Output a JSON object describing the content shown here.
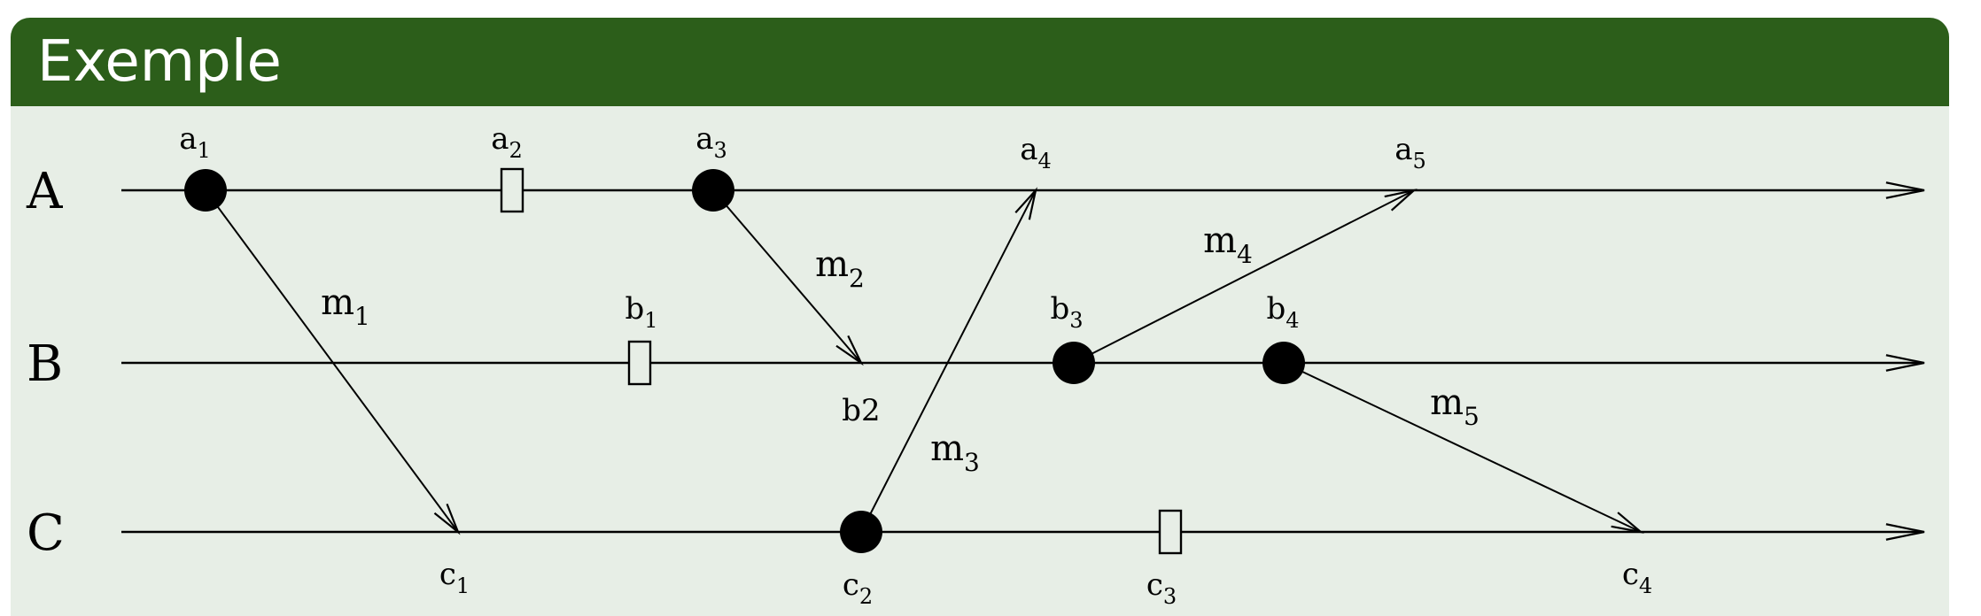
{
  "slide": {
    "title": "Exemple",
    "colors": {
      "title_bar": "#2c5e1a",
      "title_text": "#ffffff",
      "body": "#e7eee6",
      "ink": "#000000"
    }
  },
  "diagram": {
    "lanes": [
      {
        "id": "A",
        "label": "A"
      },
      {
        "id": "B",
        "label": "B"
      },
      {
        "id": "C",
        "label": "C"
      }
    ],
    "events": [
      {
        "id": "a1",
        "lane": "A",
        "order": 1,
        "kind": "send",
        "base": "a",
        "sub": "1",
        "label_side": "above"
      },
      {
        "id": "a2",
        "lane": "A",
        "order": 2,
        "kind": "internal",
        "base": "a",
        "sub": "2",
        "label_side": "above"
      },
      {
        "id": "a3",
        "lane": "A",
        "order": 3,
        "kind": "send",
        "base": "a",
        "sub": "3",
        "label_side": "above"
      },
      {
        "id": "a4",
        "lane": "A",
        "order": 4,
        "kind": "receive",
        "base": "a",
        "sub": "4",
        "label_side": "above"
      },
      {
        "id": "a5",
        "lane": "A",
        "order": 5,
        "kind": "receive",
        "base": "a",
        "sub": "5",
        "label_side": "above"
      },
      {
        "id": "b1",
        "lane": "B",
        "order": 1,
        "kind": "internal",
        "base": "b",
        "sub": "1",
        "label_side": "above"
      },
      {
        "id": "b2",
        "lane": "B",
        "order": 2,
        "kind": "receive",
        "base": "b2",
        "sub": "",
        "label_side": "below"
      },
      {
        "id": "b3",
        "lane": "B",
        "order": 3,
        "kind": "send",
        "base": "b",
        "sub": "3",
        "label_side": "above"
      },
      {
        "id": "b4",
        "lane": "B",
        "order": 4,
        "kind": "send",
        "base": "b",
        "sub": "4",
        "label_side": "above"
      },
      {
        "id": "c1",
        "lane": "C",
        "order": 1,
        "kind": "receive",
        "base": "c",
        "sub": "1",
        "label_side": "below"
      },
      {
        "id": "c2",
        "lane": "C",
        "order": 2,
        "kind": "send",
        "base": "c",
        "sub": "2",
        "label_side": "below"
      },
      {
        "id": "c3",
        "lane": "C",
        "order": 3,
        "kind": "internal",
        "base": "c",
        "sub": "3",
        "label_side": "below"
      },
      {
        "id": "c4",
        "lane": "C",
        "order": 4,
        "kind": "receive",
        "base": "c",
        "sub": "4",
        "label_side": "below"
      }
    ],
    "messages": [
      {
        "id": "m1",
        "base": "m",
        "sub": "1",
        "from": "a1",
        "to": "c1"
      },
      {
        "id": "m2",
        "base": "m",
        "sub": "2",
        "from": "a3",
        "to": "b2"
      },
      {
        "id": "m3",
        "base": "m",
        "sub": "3",
        "from": "c2",
        "to": "a4"
      },
      {
        "id": "m4",
        "base": "m",
        "sub": "4",
        "from": "b3",
        "to": "a5"
      },
      {
        "id": "m5",
        "base": "m",
        "sub": "5",
        "from": "b4",
        "to": "c4"
      }
    ]
  }
}
